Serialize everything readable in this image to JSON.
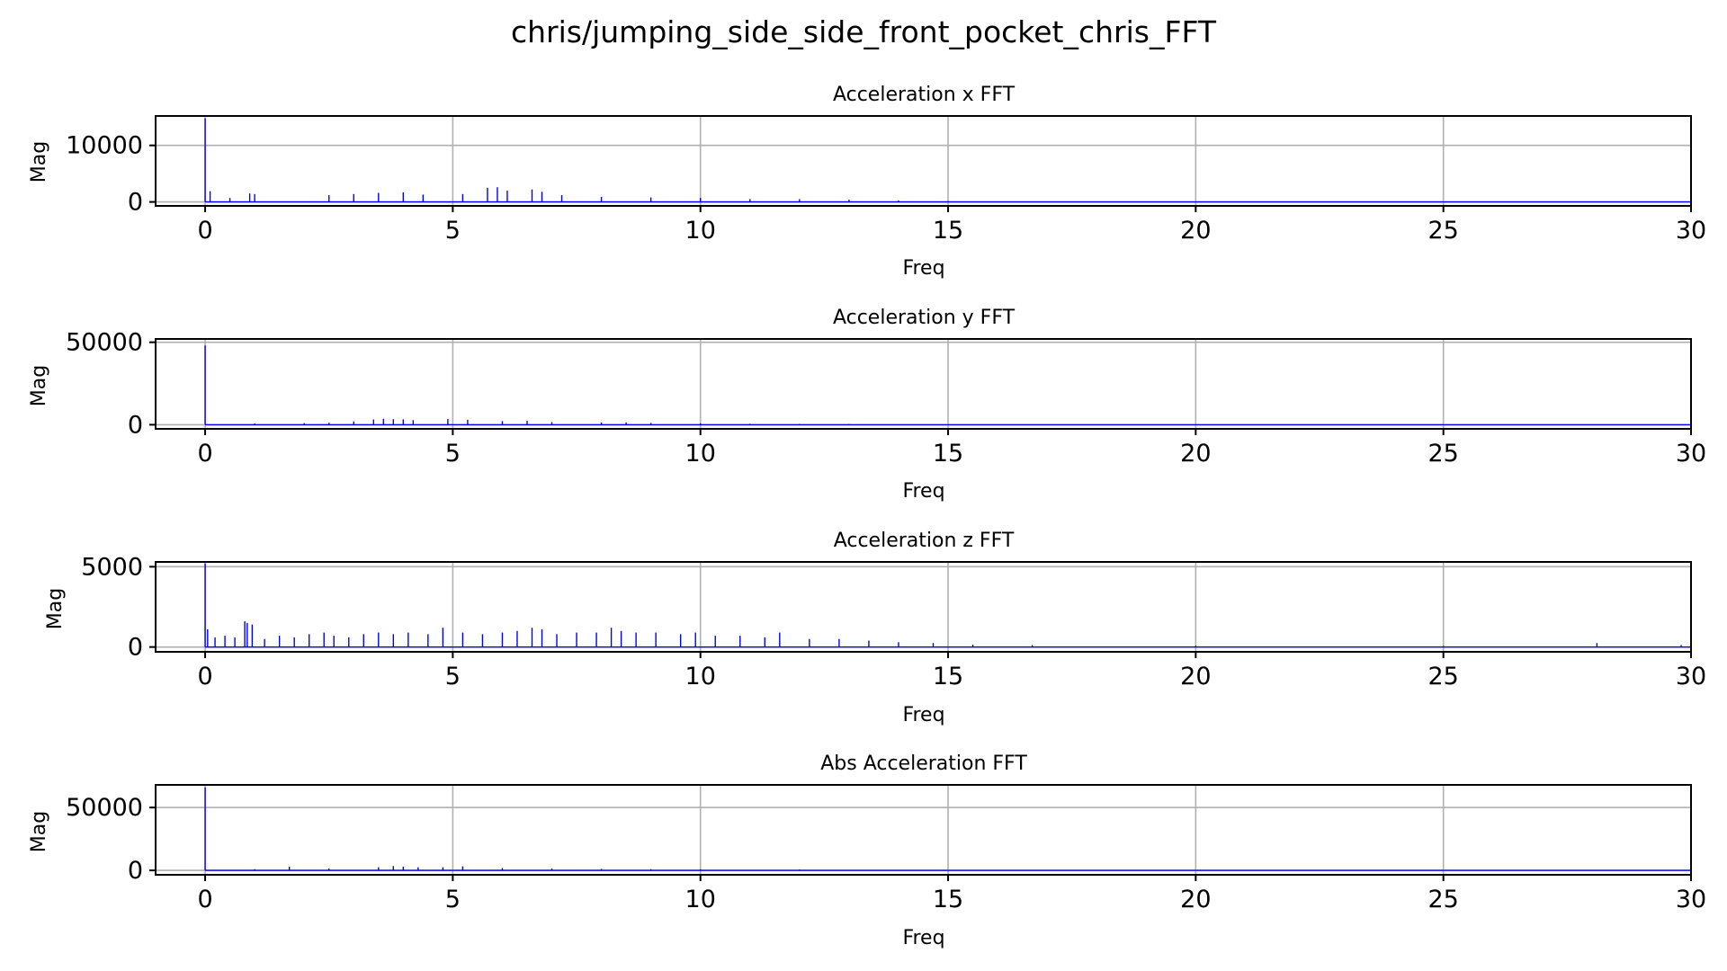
{
  "figure": {
    "suptitle": "chris/jumping_side_side_front_pocket_chris_FFT"
  },
  "chart_data": [
    {
      "type": "bar",
      "title": "Acceleration x FFT",
      "xlabel": "Freq",
      "ylabel": "Mag",
      "xlim": [
        -1,
        30
      ],
      "ylim": [
        -700,
        15200
      ],
      "xticks": [
        0,
        5,
        10,
        15,
        20,
        25,
        30
      ],
      "xtick_labels": [
        "0",
        "5",
        "10",
        "15",
        "20",
        "25",
        "30"
      ],
      "yticks": [
        0,
        10000
      ],
      "ytick_labels": [
        "0",
        "10000"
      ],
      "grid": true,
      "color": "#0000ff",
      "x": [
        0.0,
        0.1,
        0.5,
        0.9,
        1.0,
        2.5,
        3.0,
        3.5,
        4.0,
        4.4,
        5.2,
        5.7,
        5.9,
        6.1,
        6.6,
        6.8,
        7.2,
        8.0,
        9.0,
        10.0,
        11.0,
        12.0,
        13.0,
        14.0,
        15.0,
        20.0,
        25.0,
        30.0
      ],
      "values": [
        14800,
        1900,
        700,
        1500,
        1400,
        1200,
        1400,
        1600,
        1700,
        1300,
        1400,
        2500,
        2600,
        2000,
        2200,
        1800,
        1200,
        900,
        800,
        700,
        500,
        500,
        400,
        250,
        150,
        80,
        60,
        40
      ]
    },
    {
      "type": "bar",
      "title": "Acceleration y FFT",
      "xlabel": "Freq",
      "ylabel": "Mag",
      "xlim": [
        -1,
        30
      ],
      "ylim": [
        -2500,
        52000
      ],
      "xticks": [
        0,
        5,
        10,
        15,
        20,
        25,
        30
      ],
      "xtick_labels": [
        "0",
        "5",
        "10",
        "15",
        "20",
        "25",
        "30"
      ],
      "yticks": [
        0,
        50000
      ],
      "ytick_labels": [
        "0",
        "50000"
      ],
      "grid": true,
      "color": "#0000ff",
      "x": [
        0.0,
        1.0,
        2.0,
        2.5,
        3.0,
        3.4,
        3.6,
        3.8,
        4.0,
        4.2,
        4.9,
        5.3,
        6.0,
        6.5,
        7.0,
        8.0,
        8.5,
        9.0,
        10.0,
        11.0,
        12.0,
        13.0,
        15.0,
        20.0,
        25.0
      ],
      "values": [
        48000,
        800,
        1000,
        1200,
        2000,
        3200,
        3600,
        3400,
        3300,
        2800,
        3500,
        3000,
        2200,
        2400,
        1600,
        1300,
        1400,
        1100,
        800,
        600,
        500,
        400,
        200,
        150,
        100
      ]
    },
    {
      "type": "bar",
      "title": "Acceleration z FFT",
      "xlabel": "Freq",
      "ylabel": "Mag",
      "xlim": [
        -1,
        30
      ],
      "ylim": [
        -300,
        5300
      ],
      "xticks": [
        0,
        5,
        10,
        15,
        20,
        25,
        30
      ],
      "xtick_labels": [
        "0",
        "5",
        "10",
        "15",
        "20",
        "25",
        "30"
      ],
      "yticks": [
        0,
        5000
      ],
      "ytick_labels": [
        "0",
        "5000"
      ],
      "grid": true,
      "color": "#0000ff",
      "x": [
        0.0,
        0.05,
        0.2,
        0.4,
        0.6,
        0.8,
        0.85,
        0.95,
        1.2,
        1.5,
        1.8,
        2.1,
        2.4,
        2.6,
        2.9,
        3.2,
        3.5,
        3.8,
        4.1,
        4.5,
        4.8,
        5.2,
        5.6,
        6.0,
        6.3,
        6.6,
        6.8,
        7.1,
        7.5,
        7.9,
        8.2,
        8.4,
        8.7,
        9.1,
        9.6,
        9.9,
        10.3,
        10.8,
        11.3,
        11.6,
        12.2,
        12.8,
        13.4,
        14.0,
        14.7,
        15.5,
        16.7,
        20.0,
        25.0,
        28.1,
        29.8
      ],
      "values": [
        5200,
        1100,
        600,
        700,
        600,
        1600,
        1500,
        1400,
        500,
        700,
        600,
        800,
        900,
        700,
        600,
        800,
        900,
        800,
        900,
        800,
        1200,
        900,
        800,
        900,
        1000,
        1200,
        1100,
        800,
        900,
        900,
        1200,
        1000,
        900,
        900,
        800,
        900,
        700,
        700,
        600,
        900,
        500,
        500,
        400,
        300,
        250,
        150,
        120,
        80,
        60,
        250,
        120
      ]
    },
    {
      "type": "bar",
      "title": "Abs Acceleration FFT",
      "xlabel": "Freq",
      "ylabel": "Mag",
      "xlim": [
        -1,
        30
      ],
      "ylim": [
        -3500,
        68000
      ],
      "xticks": [
        0,
        5,
        10,
        15,
        20,
        25,
        30
      ],
      "xtick_labels": [
        "0",
        "5",
        "10",
        "15",
        "20",
        "25",
        "30"
      ],
      "yticks": [
        0,
        50000
      ],
      "ytick_labels": [
        "0",
        "50000"
      ],
      "grid": true,
      "color": "#0000ff",
      "x": [
        0.0,
        1.0,
        1.7,
        2.5,
        3.5,
        3.8,
        4.0,
        4.3,
        4.8,
        5.2,
        6.0,
        7.0,
        8.0,
        9.0,
        10.0,
        12.0,
        15.0,
        20.0,
        25.0
      ],
      "values": [
        66000,
        1000,
        3000,
        1500,
        2500,
        3500,
        3000,
        2500,
        2500,
        3200,
        1800,
        1500,
        1200,
        1000,
        900,
        700,
        400,
        300,
        200
      ]
    }
  ]
}
